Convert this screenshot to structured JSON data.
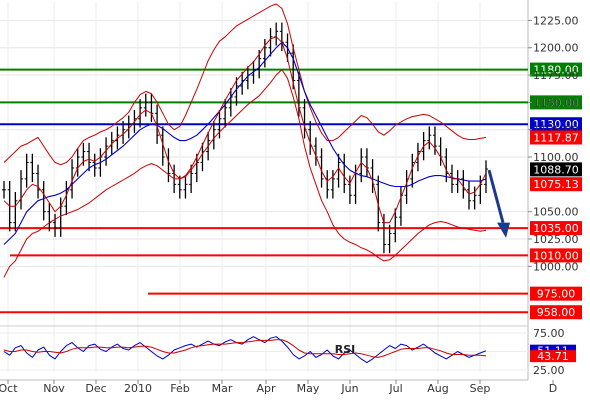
{
  "chart_data": [
    {
      "type": "line",
      "panel": "price",
      "y_axis_side": "right",
      "ylim": [
        985,
        1240
      ],
      "grid": true,
      "x_tick_labels": [
        "Oct",
        "Nov",
        "Dec",
        "2010",
        "Feb",
        "Mar",
        "Apr",
        "May",
        "Jun",
        "Jul",
        "Aug",
        "Sep",
        "D"
      ],
      "y_tick_labels": [
        {
          "value": 1225,
          "label": "1225.00"
        },
        {
          "value": 1200,
          "label": "1200.00"
        },
        {
          "value": 1175,
          "label": "1175.00"
        },
        {
          "value": 1150,
          "label": "1150.00"
        },
        {
          "value": 1125,
          "label": "1125.00"
        },
        {
          "value": 1100,
          "label": "1100.00"
        },
        {
          "value": 1050,
          "label": "1050.00"
        },
        {
          "value": 1025,
          "label": "1025.00"
        },
        {
          "value": 1000,
          "label": "1000.00"
        }
      ],
      "horizontal_levels": [
        {
          "value": 1180,
          "label": "1180.00",
          "color": "#008000",
          "bg": "#008000"
        },
        {
          "value": 1150,
          "label": "1150.00",
          "color": "#008000",
          "bg": "#008000"
        },
        {
          "value": 1130,
          "label": "1130.00",
          "color": "#0000cc",
          "bg": "#0000cc"
        },
        {
          "value": 1035,
          "label": "1035.00",
          "color": "#ff0000",
          "bg": "#ff0000"
        },
        {
          "value": 1010,
          "label": "1010.00",
          "color": "#ff0000",
          "bg": "#ff0000"
        },
        {
          "value": 975,
          "label": "975.00",
          "color": "#ff0000",
          "bg": "#ff0000"
        },
        {
          "value": 958,
          "label": "958.00",
          "color": "#ff0000",
          "bg": "#ff0000"
        }
      ],
      "price_markers": [
        {
          "value": 1117.87,
          "label": "1117.87",
          "bg": "#ff0000"
        },
        {
          "value": 1088.7,
          "label": "1088.70",
          "bg": "#000000"
        },
        {
          "value": 1075.13,
          "label": "1075.13",
          "bg": "#ff0000"
        }
      ],
      "series": [
        {
          "style": "price-bars",
          "color": "#000000",
          "values": [
            1070,
            1040,
            1060,
            1080,
            1095,
            1085,
            1070,
            1050,
            1040,
            1035,
            1055,
            1070,
            1090,
            1100,
            1105,
            1095,
            1090,
            1100,
            1110,
            1115,
            1120,
            1125,
            1130,
            1135,
            1145,
            1150,
            1140,
            1120,
            1100,
            1085,
            1075,
            1070,
            1075,
            1085,
            1095,
            1105,
            1115,
            1125,
            1135,
            1145,
            1155,
            1165,
            1170,
            1175,
            1180,
            1190,
            1200,
            1210,
            1215,
            1205,
            1195,
            1170,
            1145,
            1125,
            1110,
            1100,
            1080,
            1070,
            1080,
            1095,
            1075,
            1065,
            1085,
            1100,
            1090,
            1075,
            1040,
            1020,
            1030,
            1045,
            1065,
            1080,
            1095,
            1105,
            1115,
            1120,
            1110,
            1100,
            1085,
            1075,
            1080,
            1070,
            1060,
            1065,
            1075,
            1089
          ]
        },
        {
          "style": "bollinger-upper",
          "color": "#cc0000",
          "values": [
            1095,
            1100,
            1105,
            1110,
            1112,
            1115,
            1118,
            1110,
            1102,
            1095,
            1093,
            1095,
            1100,
            1108,
            1115,
            1118,
            1120,
            1123,
            1125,
            1128,
            1132,
            1136,
            1141,
            1150,
            1157,
            1160,
            1158,
            1150,
            1140,
            1130,
            1125,
            1128,
            1138,
            1150,
            1162,
            1175,
            1188,
            1198,
            1206,
            1210,
            1215,
            1220,
            1223,
            1226,
            1229,
            1232,
            1235,
            1238,
            1240,
            1236,
            1222,
            1200,
            1180,
            1160,
            1145,
            1132,
            1122,
            1115,
            1115,
            1118,
            1123,
            1128,
            1133,
            1138,
            1136,
            1130,
            1123,
            1120,
            1124,
            1129,
            1132,
            1135,
            1137,
            1138,
            1139,
            1138,
            1135,
            1132,
            1128,
            1124,
            1120,
            1117,
            1116,
            1116,
            1117,
            1118
          ]
        },
        {
          "style": "bollinger-middle",
          "color": "#0000cc",
          "values": [
            1020,
            1025,
            1030,
            1040,
            1050,
            1055,
            1060,
            1062,
            1064,
            1065,
            1067,
            1070,
            1075,
            1080,
            1085,
            1090,
            1093,
            1095,
            1098,
            1102,
            1106,
            1110,
            1115,
            1120,
            1125,
            1128,
            1130,
            1129,
            1126,
            1122,
            1118,
            1115,
            1115,
            1117,
            1120,
            1125,
            1130,
            1136,
            1142,
            1148,
            1155,
            1162,
            1168,
            1174,
            1178,
            1182,
            1188,
            1194,
            1200,
            1205,
            1200,
            1190,
            1175,
            1160,
            1148,
            1138,
            1128,
            1118,
            1108,
            1100,
            1093,
            1088,
            1085,
            1083,
            1082,
            1080,
            1078,
            1076,
            1074,
            1073,
            1073,
            1073,
            1075,
            1078,
            1080,
            1082,
            1083,
            1083,
            1082,
            1081,
            1080,
            1079,
            1078,
            1078,
            1078,
            1080
          ]
        },
        {
          "style": "bollinger-lower",
          "color": "#cc0000",
          "values": [
            990,
            1000,
            1005,
            1015,
            1025,
            1030,
            1032,
            1036,
            1040,
            1043,
            1046,
            1048,
            1050,
            1052,
            1055,
            1058,
            1062,
            1066,
            1070,
            1073,
            1076,
            1079,
            1082,
            1085,
            1089,
            1092,
            1094,
            1092,
            1088,
            1084,
            1080,
            1080,
            1082,
            1088,
            1095,
            1103,
            1110,
            1117,
            1123,
            1128,
            1133,
            1138,
            1143,
            1148,
            1152,
            1156,
            1162,
            1168,
            1175,
            1180,
            1172,
            1155,
            1135,
            1110,
            1090,
            1075,
            1060,
            1050,
            1038,
            1030,
            1025,
            1022,
            1020,
            1017,
            1015,
            1012,
            1008,
            1005,
            1006,
            1010,
            1015,
            1020,
            1025,
            1030,
            1034,
            1038,
            1040,
            1041,
            1040,
            1038,
            1036,
            1035,
            1034,
            1033,
            1032,
            1033
          ]
        },
        {
          "style": "moving-average",
          "color": "#cc0000",
          "values": [
            1060,
            1055,
            1055,
            1062,
            1070,
            1075,
            1073,
            1066,
            1058,
            1050,
            1055,
            1065,
            1078,
            1090,
            1096,
            1098,
            1096,
            1100,
            1106,
            1112,
            1117,
            1121,
            1126,
            1132,
            1139,
            1143,
            1140,
            1128,
            1112,
            1096,
            1085,
            1080,
            1083,
            1090,
            1100,
            1111,
            1122,
            1132,
            1142,
            1152,
            1161,
            1170,
            1176,
            1182,
            1187,
            1194,
            1202,
            1208,
            1210,
            1205,
            1190,
            1168,
            1146,
            1128,
            1113,
            1101,
            1087,
            1078,
            1082,
            1090,
            1082,
            1076,
            1086,
            1095,
            1090,
            1078,
            1056,
            1040,
            1040,
            1050,
            1063,
            1076,
            1090,
            1101,
            1110,
            1114,
            1108,
            1100,
            1088,
            1080,
            1080,
            1073,
            1066,
            1068,
            1075,
            1085
          ]
        }
      ]
    },
    {
      "type": "line",
      "panel": "rsi",
      "ylim": [
        25,
        75
      ],
      "y_tick_labels": [
        {
          "value": 75,
          "label": "75.00"
        },
        {
          "value": 50,
          "label": "50.00"
        },
        {
          "value": 25,
          "label": "25.00"
        }
      ],
      "annotations": [
        "RSI"
      ],
      "value_markers": [
        {
          "value": 51.11,
          "label": "51.11",
          "bg": "#0000cc"
        },
        {
          "value": 43.71,
          "label": "43.71",
          "bg": "#ff0000"
        }
      ],
      "series": [
        {
          "style": "rsi",
          "color": "#0000cc",
          "values": [
            50,
            45,
            55,
            58,
            48,
            42,
            52,
            56,
            45,
            40,
            50,
            58,
            62,
            55,
            50,
            58,
            60,
            53,
            50,
            56,
            60,
            54,
            52,
            58,
            62,
            56,
            50,
            44,
            40,
            45,
            52,
            55,
            58,
            60,
            56,
            60,
            64,
            60,
            58,
            63,
            66,
            62,
            60,
            66,
            70,
            66,
            62,
            68,
            70,
            64,
            56,
            46,
            40,
            44,
            50,
            42,
            46,
            52,
            44,
            40,
            48,
            52,
            46,
            40,
            35,
            40,
            46,
            52,
            58,
            54,
            60,
            58,
            52,
            56,
            60,
            54,
            48,
            44,
            40,
            45,
            50,
            46,
            42,
            45,
            48,
            51
          ]
        },
        {
          "style": "rsi-signal",
          "color": "#cc0000",
          "values": [
            52,
            50,
            50,
            52,
            52,
            50,
            49,
            50,
            50,
            49,
            48,
            50,
            53,
            55,
            55,
            55,
            56,
            56,
            55,
            55,
            56,
            56,
            55,
            56,
            57,
            57,
            56,
            53,
            50,
            48,
            48,
            50,
            52,
            55,
            57,
            58,
            59,
            60,
            60,
            60,
            61,
            62,
            62,
            63,
            64,
            65,
            65,
            65,
            66,
            66,
            63,
            58,
            52,
            48,
            47,
            47,
            47,
            47,
            47,
            46,
            46,
            47,
            48,
            47,
            45,
            43,
            42,
            44,
            47,
            50,
            53,
            54,
            54,
            54,
            55,
            55,
            53,
            51,
            48,
            46,
            46,
            46,
            45,
            45,
            45,
            44
          ]
        }
      ]
    }
  ]
}
